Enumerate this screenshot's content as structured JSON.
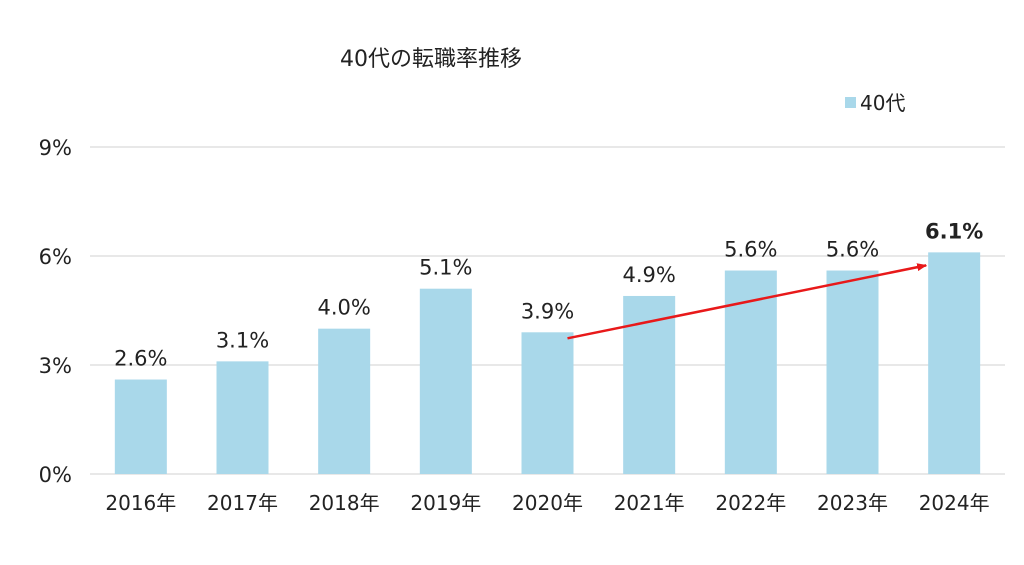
{
  "chart_data": {
    "type": "bar",
    "title": "40代の転職率推移",
    "categories": [
      "2016年",
      "2017年",
      "2018年",
      "2019年",
      "2020年",
      "2021年",
      "2022年",
      "2023年",
      "2024年"
    ],
    "series": [
      {
        "name": "40代",
        "values": [
          2.6,
          3.1,
          4.0,
          5.1,
          3.9,
          4.9,
          5.6,
          5.6,
          6.1
        ]
      }
    ],
    "data_labels": [
      "2.6%",
      "3.1%",
      "4.0%",
      "5.1%",
      "3.9%",
      "4.9%",
      "5.6%",
      "5.6%",
      "6.1%"
    ],
    "bold_label_index": 8,
    "yticks": [
      {
        "value": 0,
        "label": "0%"
      },
      {
        "value": 3,
        "label": "3%"
      },
      {
        "value": 6,
        "label": "6%"
      },
      {
        "value": 9,
        "label": "9%"
      }
    ],
    "ylim": [
      0,
      9
    ],
    "legend": {
      "label": "40代",
      "position": "top-right"
    },
    "annotation": {
      "type": "arrow",
      "from_category": "2020年",
      "to_category": "2024年",
      "color": "#e8191a"
    },
    "colors": {
      "bar": "#a9d8ea",
      "grid": "#d9d9d9",
      "text": "#222222"
    }
  }
}
